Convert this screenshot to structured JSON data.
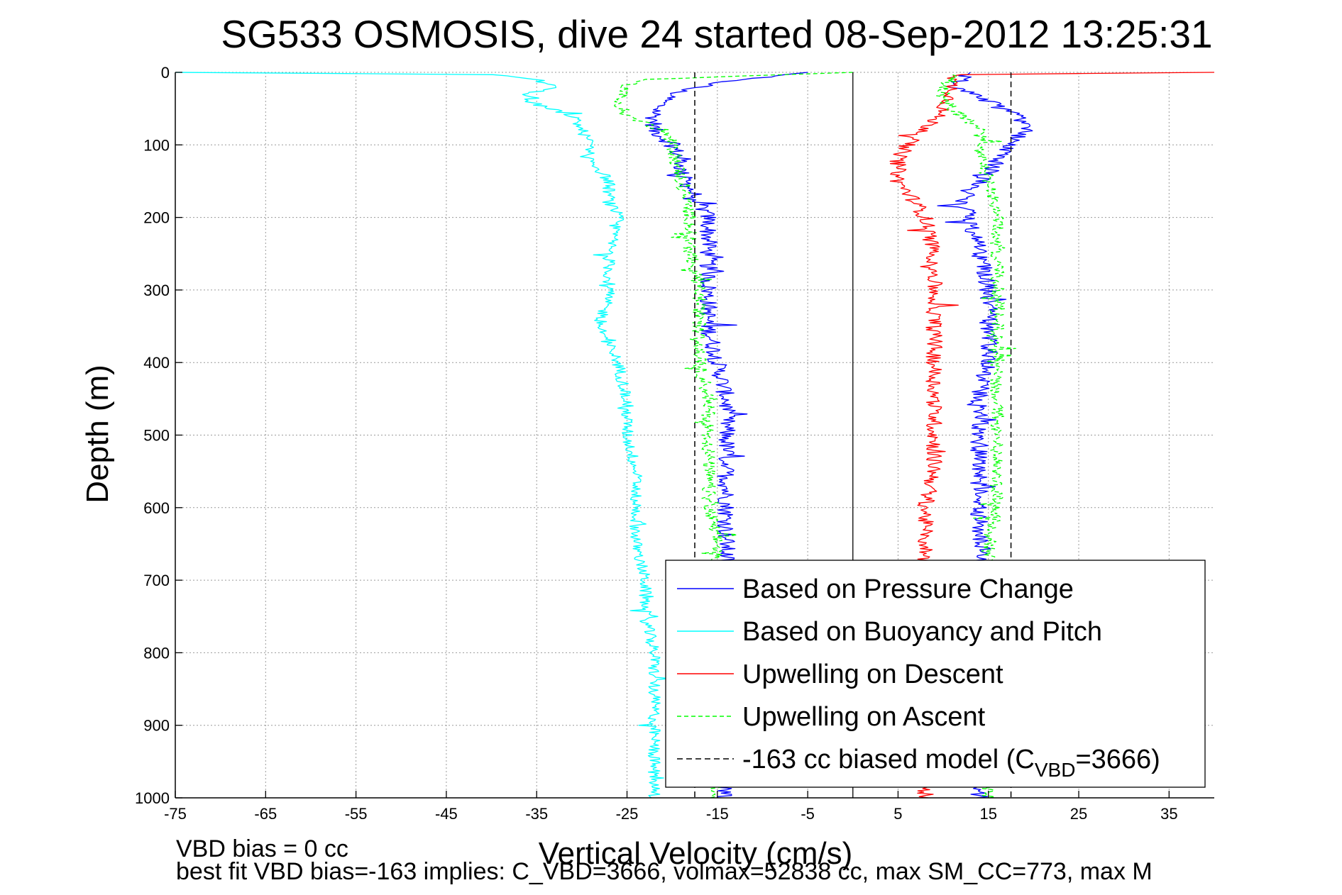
{
  "chart_data": {
    "type": "line",
    "title": "SG533 OSMOSIS, dive 24 started 08-Sep-2012 13:25:31",
    "xlabel": "Vertical Velocity (cm/s)",
    "ylabel": "Depth (m)",
    "xlim": [
      -75,
      40
    ],
    "ylim": [
      0,
      1000
    ],
    "y_reversed": true,
    "grid": true,
    "x_ticks": [
      -75,
      -65,
      -55,
      -45,
      -35,
      -25,
      -15,
      -5,
      5,
      15,
      25,
      35
    ],
    "y_ticks": [
      0,
      100,
      200,
      300,
      400,
      500,
      600,
      700,
      800,
      900,
      1000
    ],
    "legend_position": "bottom-right",
    "zero_line_x": 0,
    "series": [
      {
        "name": "Based on Pressure Change",
        "color": "#0000ff",
        "dash": "solid",
        "descent": {
          "depth": [
            0,
            10,
            25,
            40,
            60,
            80,
            100,
            120,
            140,
            160,
            180,
            200,
            250,
            300,
            350,
            400,
            450,
            500,
            550,
            600,
            650,
            700,
            750,
            800,
            850,
            900,
            950,
            1000
          ],
          "velocity": [
            -5,
            -13,
            -19,
            -21,
            -22,
            -22,
            -20,
            -19,
            -19,
            -18,
            -17,
            -16,
            -16,
            -16,
            -16,
            -15,
            -14,
            -14,
            -14,
            -14,
            -14,
            -14,
            -14,
            -14,
            -14,
            -14,
            -14,
            -14
          ]
        },
        "ascent": {
          "depth": [
            1000,
            950,
            900,
            850,
            800,
            750,
            700,
            650,
            600,
            550,
            500,
            450,
            400,
            350,
            300,
            250,
            200,
            180,
            160,
            140,
            120,
            100,
            80,
            60,
            40,
            20,
            10,
            0
          ],
          "velocity": [
            14,
            14,
            14,
            14,
            14,
            14,
            14,
            14,
            14,
            14,
            14,
            14,
            15,
            15,
            15,
            14,
            13,
            12,
            13,
            15,
            16,
            17,
            19,
            18,
            15,
            11,
            12,
            13
          ]
        },
        "noise": 1.0
      },
      {
        "name": "Based on Buoyancy and Pitch",
        "color": "#00ffff",
        "dash": "solid",
        "descent": {
          "depth": [
            0,
            3,
            10,
            20,
            30,
            40,
            60,
            80,
            100,
            120,
            150,
            180,
            200,
            250,
            300,
            350,
            400,
            450,
            500,
            550,
            600,
            650,
            700,
            750,
            800,
            850,
            900,
            950,
            1000
          ],
          "velocity": [
            -75,
            -40,
            -35,
            -33,
            -36,
            -36,
            -31,
            -30,
            -29,
            -29,
            -27,
            -27,
            -26,
            -27,
            -27,
            -28,
            -26,
            -25,
            -25,
            -24,
            -24,
            -24,
            -23,
            -23,
            -22,
            -22,
            -22,
            -22,
            -22
          ]
        },
        "noise": 0.7
      },
      {
        "name": "Upwelling on Descent",
        "color": "#ff0000",
        "dash": "solid",
        "descent": {
          "depth": [
            0,
            3,
            10,
            30,
            50,
            80,
            100,
            120,
            150,
            180,
            200,
            250,
            300,
            350,
            400,
            450,
            500,
            550,
            600,
            650,
            700,
            750,
            800,
            850,
            900,
            950,
            1000
          ],
          "velocity": [
            40,
            12,
            11,
            11,
            10,
            8,
            6,
            5,
            5,
            7,
            8,
            9,
            9,
            9,
            9,
            9,
            9,
            9,
            8,
            8,
            8,
            8,
            8,
            8,
            8,
            8,
            8
          ]
        },
        "noise": 0.9
      },
      {
        "name": "Upwelling on Ascent",
        "color": "#00ff00",
        "dash": "6,4",
        "descent": {
          "depth": [
            0,
            10,
            20,
            40,
            60,
            80,
            100,
            150,
            200,
            250,
            300,
            350,
            400,
            450,
            500,
            550,
            600,
            650,
            700,
            750,
            800,
            850,
            900,
            950,
            1000
          ],
          "velocity": [
            0,
            -24,
            -25,
            -26,
            -25,
            -21,
            -20,
            -19,
            -18,
            -18,
            -17,
            -17,
            -17,
            -16,
            -16,
            -16,
            -16,
            -15,
            -15,
            -15,
            -15,
            -15,
            -15,
            -15,
            -15
          ]
        },
        "ascent": {
          "depth": [
            1000,
            950,
            900,
            850,
            800,
            750,
            700,
            650,
            600,
            550,
            500,
            450,
            400,
            350,
            300,
            250,
            200,
            150,
            100,
            80,
            60,
            40,
            20,
            10,
            0
          ],
          "velocity": [
            15,
            15,
            15,
            15,
            15,
            15,
            15,
            15,
            16,
            16,
            16,
            16,
            16,
            16,
            16,
            16,
            16,
            15,
            14,
            14,
            12,
            10,
            10,
            11,
            11
          ]
        },
        "noise": 0.8
      },
      {
        "name": "-163 cc biased model (C",
        "subscript": "VBD",
        "name_suffix": "=3666)",
        "color": "#000000",
        "dash": "8,5",
        "verticals_x": [
          -17.5,
          17.5
        ]
      }
    ]
  },
  "footer": {
    "line1": "VBD bias = 0 cc",
    "line2": "best fit VBD bias=-163 implies: C_VBD=3666, volmax=52838 cc, max SM_CC=773, max M"
  }
}
